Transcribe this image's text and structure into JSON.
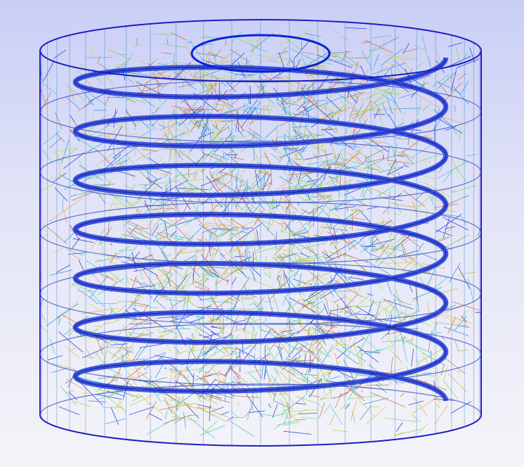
{
  "viewer": {
    "render_mode": "wireframe",
    "background_gradient": [
      "#c9cef6",
      "#f4f4f8"
    ]
  },
  "model": {
    "shape": "cylinder-with-internal-helical-coil",
    "stacked_layers": 6,
    "helix_turns": 7,
    "edge_colors": [
      "#1b2fd6",
      "#2f8fd8",
      "#3ec6c0",
      "#7ed36a",
      "#c9d43c",
      "#e0a94a",
      "#cf6a3a"
    ],
    "outline_color": "#1c1cc4",
    "coil_color": "#0a24d8"
  }
}
